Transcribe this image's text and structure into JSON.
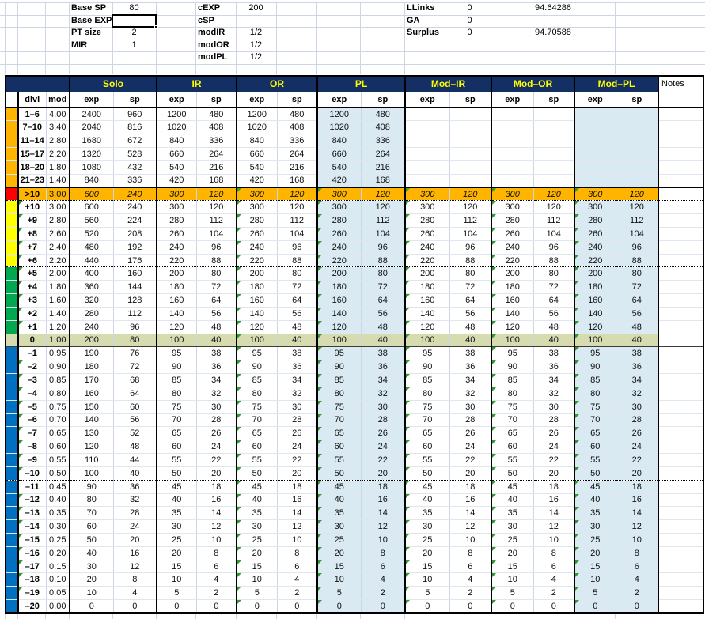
{
  "colors": {
    "navy": "#132F63",
    "hdrtext": "#FFFF00",
    "shade": "#DAEAF3",
    "grid": "#CCD6E4",
    "indicator": "#2E9C2E",
    "band-orange": "#FFB400",
    "band-red": "#FF0000",
    "band-yellow": "#FFFF00",
    "band-green": "#00A850",
    "band-olive": "#D6DBB0",
    "band-blue": "#0070C0",
    "row-orange": "#FFB400",
    "row-olive": "#D6DBB0"
  },
  "top": {
    "left": [
      {
        "label": "Base SP",
        "value": "80"
      },
      {
        "label": "Base EXP",
        "value": ""
      },
      {
        "label": "PT size",
        "value": "2"
      },
      {
        "label": "MIR",
        "value": "1"
      }
    ],
    "mid": [
      {
        "label": "cEXP",
        "value": "200"
      },
      {
        "label": "cSP",
        "value": ""
      },
      {
        "label": "modIR",
        "value": "1/2"
      },
      {
        "label": "modOR",
        "value": "1/2"
      },
      {
        "label": "modPL",
        "value": "1/2"
      }
    ],
    "right": [
      {
        "label": "LLinks",
        "value": "0",
        "extra": "94.64286"
      },
      {
        "label": "GA",
        "value": "0",
        "extra": ""
      },
      {
        "label": "Surplus",
        "value": "0",
        "extra": "94.70588"
      }
    ]
  },
  "table": {
    "groups": [
      "Solo",
      "IR",
      "OR",
      "PL",
      "Mod–IR",
      "Mod–OR",
      "Mod–PL"
    ],
    "notes_label": "Notes",
    "col_headers": {
      "dlvl": "dlvl",
      "mod": "mod",
      "exp": "exp",
      "sp": "sp"
    },
    "value_column_order": [
      "solo_exp",
      "solo_sp",
      "ir_exp",
      "ir_sp",
      "or_exp",
      "or_sp",
      "pl_exp",
      "pl_sp",
      "mod_ir_exp",
      "mod_ir_sp",
      "mod_or_exp",
      "mod_or_sp",
      "mod_pl_exp",
      "mod_pl_sp"
    ],
    "rows": [
      {
        "dlvl": "1–6",
        "mod": "4.00",
        "v": [
          "2400",
          "960",
          "1200",
          "480",
          "1200",
          "480",
          "1200",
          "480",
          "",
          "",
          "",
          "",
          "",
          ""
        ],
        "band": "orange",
        "bg": "",
        "italic": false,
        "tri_dlvl": false,
        "tri_exp": false,
        "sep": ""
      },
      {
        "dlvl": "7–10",
        "mod": "3.40",
        "v": [
          "2040",
          "816",
          "1020",
          "408",
          "1020",
          "408",
          "1020",
          "408",
          "",
          "",
          "",
          "",
          "",
          ""
        ],
        "band": "orange",
        "bg": "",
        "italic": false,
        "tri_dlvl": false,
        "tri_exp": false,
        "sep": ""
      },
      {
        "dlvl": "11–14",
        "mod": "2.80",
        "v": [
          "1680",
          "672",
          "840",
          "336",
          "840",
          "336",
          "840",
          "336",
          "",
          "",
          "",
          "",
          "",
          ""
        ],
        "band": "orange",
        "bg": "",
        "italic": false,
        "tri_dlvl": false,
        "tri_exp": false,
        "sep": ""
      },
      {
        "dlvl": "15–17",
        "mod": "2.20",
        "v": [
          "1320",
          "528",
          "660",
          "264",
          "660",
          "264",
          "660",
          "264",
          "",
          "",
          "",
          "",
          "",
          ""
        ],
        "band": "orange",
        "bg": "",
        "italic": false,
        "tri_dlvl": false,
        "tri_exp": false,
        "sep": ""
      },
      {
        "dlvl": "18–20",
        "mod": "1.80",
        "v": [
          "1080",
          "432",
          "540",
          "216",
          "540",
          "216",
          "540",
          "216",
          "",
          "",
          "",
          "",
          "",
          ""
        ],
        "band": "orange",
        "bg": "",
        "italic": false,
        "tri_dlvl": false,
        "tri_exp": false,
        "sep": ""
      },
      {
        "dlvl": "21–23",
        "mod": "1.40",
        "v": [
          "840",
          "336",
          "420",
          "168",
          "420",
          "168",
          "420",
          "168",
          "",
          "",
          "",
          "",
          "",
          ""
        ],
        "band": "orange",
        "bg": "",
        "italic": false,
        "tri_dlvl": false,
        "tri_exp": false,
        "sep": ""
      },
      {
        "dlvl": ">10",
        "mod": "3.00",
        "v": [
          "600",
          "240",
          "300",
          "120",
          "300",
          "120",
          "300",
          "120",
          "300",
          "120",
          "300",
          "120",
          "300",
          "120"
        ],
        "band": "red",
        "bg": "orange",
        "italic": true,
        "tri_dlvl": false,
        "tri_exp": true,
        "sep": "sepTop sepDot"
      },
      {
        "dlvl": "+10",
        "mod": "3.00",
        "v": [
          "600",
          "240",
          "300",
          "120",
          "300",
          "120",
          "300",
          "120",
          "300",
          "120",
          "300",
          "120",
          "300",
          "120"
        ],
        "band": "yellow",
        "bg": "",
        "italic": false,
        "tri_dlvl": true,
        "tri_exp": true,
        "sep": ""
      },
      {
        "dlvl": "+9",
        "mod": "2.80",
        "v": [
          "560",
          "224",
          "280",
          "112",
          "280",
          "112",
          "280",
          "112",
          "280",
          "112",
          "280",
          "112",
          "280",
          "112"
        ],
        "band": "yellow",
        "bg": "",
        "italic": false,
        "tri_dlvl": true,
        "tri_exp": true,
        "sep": ""
      },
      {
        "dlvl": "+8",
        "mod": "2.60",
        "v": [
          "520",
          "208",
          "260",
          "104",
          "260",
          "104",
          "260",
          "104",
          "260",
          "104",
          "260",
          "104",
          "260",
          "104"
        ],
        "band": "yellow",
        "bg": "",
        "italic": false,
        "tri_dlvl": true,
        "tri_exp": true,
        "sep": ""
      },
      {
        "dlvl": "+7",
        "mod": "2.40",
        "v": [
          "480",
          "192",
          "240",
          "96",
          "240",
          "96",
          "240",
          "96",
          "240",
          "96",
          "240",
          "96",
          "240",
          "96"
        ],
        "band": "yellow",
        "bg": "",
        "italic": false,
        "tri_dlvl": true,
        "tri_exp": true,
        "sep": ""
      },
      {
        "dlvl": "+6",
        "mod": "2.20",
        "v": [
          "440",
          "176",
          "220",
          "88",
          "220",
          "88",
          "220",
          "88",
          "220",
          "88",
          "220",
          "88",
          "220",
          "88"
        ],
        "band": "yellow",
        "bg": "",
        "italic": false,
        "tri_dlvl": true,
        "tri_exp": true,
        "sep": "sepDot"
      },
      {
        "dlvl": "+5",
        "mod": "2.00",
        "v": [
          "400",
          "160",
          "200",
          "80",
          "200",
          "80",
          "200",
          "80",
          "200",
          "80",
          "200",
          "80",
          "200",
          "80"
        ],
        "band": "green",
        "bg": "",
        "italic": false,
        "tri_dlvl": true,
        "tri_exp": true,
        "sep": ""
      },
      {
        "dlvl": "+4",
        "mod": "1.80",
        "v": [
          "360",
          "144",
          "180",
          "72",
          "180",
          "72",
          "180",
          "72",
          "180",
          "72",
          "180",
          "72",
          "180",
          "72"
        ],
        "band": "green",
        "bg": "",
        "italic": false,
        "tri_dlvl": true,
        "tri_exp": true,
        "sep": ""
      },
      {
        "dlvl": "+3",
        "mod": "1.60",
        "v": [
          "320",
          "128",
          "160",
          "64",
          "160",
          "64",
          "160",
          "64",
          "160",
          "64",
          "160",
          "64",
          "160",
          "64"
        ],
        "band": "green",
        "bg": "",
        "italic": false,
        "tri_dlvl": true,
        "tri_exp": true,
        "sep": ""
      },
      {
        "dlvl": "+2",
        "mod": "1.40",
        "v": [
          "280",
          "112",
          "140",
          "56",
          "140",
          "56",
          "140",
          "56",
          "140",
          "56",
          "140",
          "56",
          "140",
          "56"
        ],
        "band": "green",
        "bg": "",
        "italic": false,
        "tri_dlvl": true,
        "tri_exp": true,
        "sep": ""
      },
      {
        "dlvl": "+1",
        "mod": "1.20",
        "v": [
          "240",
          "96",
          "120",
          "48",
          "120",
          "48",
          "120",
          "48",
          "120",
          "48",
          "120",
          "48",
          "120",
          "48"
        ],
        "band": "green",
        "bg": "",
        "italic": false,
        "tri_dlvl": true,
        "tri_exp": true,
        "sep": ""
      },
      {
        "dlvl": "0",
        "mod": "1.00",
        "v": [
          "200",
          "80",
          "100",
          "40",
          "100",
          "40",
          "100",
          "40",
          "100",
          "40",
          "100",
          "40",
          "100",
          "40"
        ],
        "band": "olive",
        "bg": "olive",
        "italic": false,
        "tri_dlvl": false,
        "tri_exp": true,
        "sep": "box"
      },
      {
        "dlvl": "–1",
        "mod": "0.95",
        "v": [
          "190",
          "76",
          "95",
          "38",
          "95",
          "38",
          "95",
          "38",
          "95",
          "38",
          "95",
          "38",
          "95",
          "38"
        ],
        "band": "blue",
        "bg": "",
        "italic": false,
        "tri_dlvl": false,
        "tri_exp": true,
        "sep": ""
      },
      {
        "dlvl": "–2",
        "mod": "0.90",
        "v": [
          "180",
          "72",
          "90",
          "36",
          "90",
          "36",
          "90",
          "36",
          "90",
          "36",
          "90",
          "36",
          "90",
          "36"
        ],
        "band": "blue",
        "bg": "",
        "italic": false,
        "tri_dlvl": true,
        "tri_exp": true,
        "sep": ""
      },
      {
        "dlvl": "–3",
        "mod": "0.85",
        "v": [
          "170",
          "68",
          "85",
          "34",
          "85",
          "34",
          "85",
          "34",
          "85",
          "34",
          "85",
          "34",
          "85",
          "34"
        ],
        "band": "blue",
        "bg": "",
        "italic": false,
        "tri_dlvl": true,
        "tri_exp": true,
        "sep": ""
      },
      {
        "dlvl": "–4",
        "mod": "0.80",
        "v": [
          "160",
          "64",
          "80",
          "32",
          "80",
          "32",
          "80",
          "32",
          "80",
          "32",
          "80",
          "32",
          "80",
          "32"
        ],
        "band": "blue",
        "bg": "",
        "italic": false,
        "tri_dlvl": true,
        "tri_exp": true,
        "sep": ""
      },
      {
        "dlvl": "–5",
        "mod": "0.75",
        "v": [
          "150",
          "60",
          "75",
          "30",
          "75",
          "30",
          "75",
          "30",
          "75",
          "30",
          "75",
          "30",
          "75",
          "30"
        ],
        "band": "blue",
        "bg": "",
        "italic": false,
        "tri_dlvl": true,
        "tri_exp": true,
        "sep": ""
      },
      {
        "dlvl": "–6",
        "mod": "0.70",
        "v": [
          "140",
          "56",
          "70",
          "28",
          "70",
          "28",
          "70",
          "28",
          "70",
          "28",
          "70",
          "28",
          "70",
          "28"
        ],
        "band": "blue",
        "bg": "",
        "italic": false,
        "tri_dlvl": true,
        "tri_exp": true,
        "sep": ""
      },
      {
        "dlvl": "–7",
        "mod": "0.65",
        "v": [
          "130",
          "52",
          "65",
          "26",
          "65",
          "26",
          "65",
          "26",
          "65",
          "26",
          "65",
          "26",
          "65",
          "26"
        ],
        "band": "blue",
        "bg": "",
        "italic": false,
        "tri_dlvl": true,
        "tri_exp": true,
        "sep": ""
      },
      {
        "dlvl": "–8",
        "mod": "0.60",
        "v": [
          "120",
          "48",
          "60",
          "24",
          "60",
          "24",
          "60",
          "24",
          "60",
          "24",
          "60",
          "24",
          "60",
          "24"
        ],
        "band": "blue",
        "bg": "",
        "italic": false,
        "tri_dlvl": true,
        "tri_exp": true,
        "sep": ""
      },
      {
        "dlvl": "–9",
        "mod": "0.55",
        "v": [
          "110",
          "44",
          "55",
          "22",
          "55",
          "22",
          "55",
          "22",
          "55",
          "22",
          "55",
          "22",
          "55",
          "22"
        ],
        "band": "blue",
        "bg": "",
        "italic": false,
        "tri_dlvl": true,
        "tri_exp": true,
        "sep": ""
      },
      {
        "dlvl": "–10",
        "mod": "0.50",
        "v": [
          "100",
          "40",
          "50",
          "20",
          "50",
          "20",
          "50",
          "20",
          "50",
          "20",
          "50",
          "20",
          "50",
          "20"
        ],
        "band": "blue",
        "bg": "",
        "italic": false,
        "tri_dlvl": true,
        "tri_exp": true,
        "sep": "sepDot"
      },
      {
        "dlvl": "–11",
        "mod": "0.45",
        "v": [
          "90",
          "36",
          "45",
          "18",
          "45",
          "18",
          "45",
          "18",
          "45",
          "18",
          "45",
          "18",
          "45",
          "18"
        ],
        "band": "blue",
        "bg": "",
        "italic": false,
        "tri_dlvl": false,
        "tri_exp": true,
        "sep": ""
      },
      {
        "dlvl": "–12",
        "mod": "0.40",
        "v": [
          "80",
          "32",
          "40",
          "16",
          "40",
          "16",
          "40",
          "16",
          "40",
          "16",
          "40",
          "16",
          "40",
          "16"
        ],
        "band": "blue",
        "bg": "",
        "italic": false,
        "tri_dlvl": true,
        "tri_exp": true,
        "sep": ""
      },
      {
        "dlvl": "–13",
        "mod": "0.35",
        "v": [
          "70",
          "28",
          "35",
          "14",
          "35",
          "14",
          "35",
          "14",
          "35",
          "14",
          "35",
          "14",
          "35",
          "14"
        ],
        "band": "blue",
        "bg": "",
        "italic": false,
        "tri_dlvl": true,
        "tri_exp": true,
        "sep": ""
      },
      {
        "dlvl": "–14",
        "mod": "0.30",
        "v": [
          "60",
          "24",
          "30",
          "12",
          "30",
          "12",
          "30",
          "12",
          "30",
          "12",
          "30",
          "12",
          "30",
          "12"
        ],
        "band": "blue",
        "bg": "",
        "italic": false,
        "tri_dlvl": true,
        "tri_exp": true,
        "sep": ""
      },
      {
        "dlvl": "–15",
        "mod": "0.25",
        "v": [
          "50",
          "20",
          "25",
          "10",
          "25",
          "10",
          "25",
          "10",
          "25",
          "10",
          "25",
          "10",
          "25",
          "10"
        ],
        "band": "blue",
        "bg": "",
        "italic": false,
        "tri_dlvl": true,
        "tri_exp": true,
        "sep": ""
      },
      {
        "dlvl": "–16",
        "mod": "0.20",
        "v": [
          "40",
          "16",
          "20",
          "8",
          "20",
          "8",
          "20",
          "8",
          "20",
          "8",
          "20",
          "8",
          "20",
          "8"
        ],
        "band": "blue",
        "bg": "",
        "italic": false,
        "tri_dlvl": true,
        "tri_exp": true,
        "sep": ""
      },
      {
        "dlvl": "–17",
        "mod": "0.15",
        "v": [
          "30",
          "12",
          "15",
          "6",
          "15",
          "6",
          "15",
          "6",
          "15",
          "6",
          "15",
          "6",
          "15",
          "6"
        ],
        "band": "blue",
        "bg": "",
        "italic": false,
        "tri_dlvl": true,
        "tri_exp": true,
        "sep": ""
      },
      {
        "dlvl": "–18",
        "mod": "0.10",
        "v": [
          "20",
          "8",
          "10",
          "4",
          "10",
          "4",
          "10",
          "4",
          "10",
          "4",
          "10",
          "4",
          "10",
          "4"
        ],
        "band": "blue",
        "bg": "",
        "italic": false,
        "tri_dlvl": true,
        "tri_exp": true,
        "sep": ""
      },
      {
        "dlvl": "–19",
        "mod": "0.05",
        "v": [
          "10",
          "4",
          "5",
          "2",
          "5",
          "2",
          "5",
          "2",
          "5",
          "2",
          "5",
          "2",
          "5",
          "2"
        ],
        "band": "blue",
        "bg": "",
        "italic": false,
        "tri_dlvl": true,
        "tri_exp": true,
        "sep": ""
      },
      {
        "dlvl": "–20",
        "mod": "0.00",
        "v": [
          "0",
          "0",
          "0",
          "0",
          "0",
          "0",
          "0",
          "0",
          "0",
          "0",
          "0",
          "0",
          "0",
          "0"
        ],
        "band": "blue",
        "bg": "",
        "italic": false,
        "tri_dlvl": false,
        "tri_exp": true,
        "sep": ""
      }
    ]
  }
}
